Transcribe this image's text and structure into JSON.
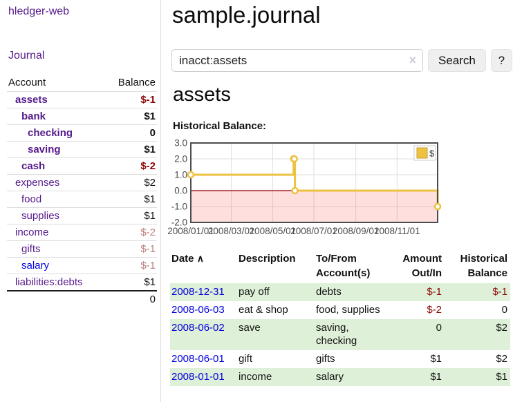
{
  "app": {
    "brand": "hledger-web"
  },
  "sidebar": {
    "journal_label": "Journal",
    "accounts_table": {
      "headers": {
        "account": "Account",
        "balance": "Balance"
      },
      "rows": [
        {
          "name": "assets",
          "depth": 1,
          "nameClass": "purple bold",
          "balance": "$-1",
          "balClass": "bold neg"
        },
        {
          "name": "bank",
          "depth": 2,
          "nameClass": "purple bold",
          "balance": "$1",
          "balClass": "bold"
        },
        {
          "name": "checking",
          "depth": 3,
          "nameClass": "purple bold",
          "balance": "0",
          "balClass": "bold"
        },
        {
          "name": "saving",
          "depth": 3,
          "nameClass": "purple bold",
          "balance": "$1",
          "balClass": "bold"
        },
        {
          "name": "cash",
          "depth": 2,
          "nameClass": "purple bold",
          "balance": "$-2",
          "balClass": "bold neg"
        },
        {
          "name": "expenses",
          "depth": 1,
          "nameClass": "purple",
          "balance": "$2",
          "balClass": ""
        },
        {
          "name": "food",
          "depth": 2,
          "nameClass": "purple",
          "balance": "$1",
          "balClass": ""
        },
        {
          "name": "supplies",
          "depth": 2,
          "nameClass": "purple",
          "balance": "$1",
          "balClass": ""
        },
        {
          "name": "income",
          "depth": 1,
          "nameClass": "purple",
          "balance": "$-2",
          "balClass": "mneg"
        },
        {
          "name": "gifts",
          "depth": 2,
          "nameClass": "purple",
          "balance": "$-1",
          "balClass": "mneg"
        },
        {
          "name": "salary",
          "depth": 2,
          "nameClass": "blue",
          "balance": "$-1",
          "balClass": "mneg"
        },
        {
          "name": "liabilities:debts",
          "depth": 1,
          "nameClass": "purple",
          "balance": "$1",
          "balClass": ""
        }
      ],
      "total": "0"
    }
  },
  "header": {
    "title": "sample.journal"
  },
  "search": {
    "value": "inacct:assets",
    "clear_icon": "×",
    "button_label": "Search",
    "help_label": "?"
  },
  "account_page": {
    "heading": "assets",
    "chart_label": "Historical Balance:"
  },
  "chart_data": {
    "type": "line",
    "step": true,
    "series": [
      {
        "name": "$",
        "color": "#edc240",
        "points": [
          [
            "2008-01-01",
            1
          ],
          [
            "2008-06-01",
            2
          ],
          [
            "2008-06-02",
            2
          ],
          [
            "2008-06-03",
            0
          ],
          [
            "2008-12-31",
            -1
          ]
        ]
      }
    ],
    "x_range": [
      "2008-01-01",
      "2008-12-31"
    ],
    "x_ticks": [
      {
        "date": "2008-01-01",
        "label": "2008/01/01"
      },
      {
        "date": "2008-03-01",
        "label": "2008/03/01"
      },
      {
        "date": "2008-05-01",
        "label": "2008/05/01"
      },
      {
        "date": "2008-07-01",
        "label": "2008/07/01"
      },
      {
        "date": "2008-09-01",
        "label": "2008/09/01"
      },
      {
        "date": "2008-11-01",
        "label": "2008/11/01"
      }
    ],
    "y_ticks": [
      "3.0",
      "2.0",
      "1.0",
      "0.0",
      "-1.0",
      "-2.0"
    ],
    "ylim": [
      -2,
      3
    ],
    "legend": {
      "label": "$",
      "position": "top-right"
    },
    "grid": true,
    "negative_region_fill": "rgba(255,0,0,0.13)",
    "zero_line_color": "#8b0000",
    "marker_fill": "#ffffff"
  },
  "register_table": {
    "headers": {
      "date": "Date",
      "sort_icon": "∧",
      "description": "Description",
      "accounts": "To/From\nAccount(s)",
      "amount": "Amount\nOut/In",
      "balance": "Historical\nBalance"
    },
    "rows": [
      {
        "date": "2008-12-31",
        "description": "pay off",
        "accounts": "debts",
        "amount": "$-1",
        "amount_neg": true,
        "balance": "$-1",
        "balance_neg": true
      },
      {
        "date": "2008-06-03",
        "description": "eat & shop",
        "accounts": "food, supplies",
        "amount": "$-2",
        "amount_neg": true,
        "balance": "0",
        "balance_neg": false
      },
      {
        "date": "2008-06-02",
        "description": "save",
        "accounts": "saving,\nchecking",
        "amount": "0",
        "amount_neg": false,
        "balance": "$2",
        "balance_neg": false
      },
      {
        "date": "2008-06-01",
        "description": "gift",
        "accounts": "gifts",
        "amount": "$1",
        "amount_neg": false,
        "balance": "$2",
        "balance_neg": false
      },
      {
        "date": "2008-01-01",
        "description": "income",
        "accounts": "salary",
        "amount": "$1",
        "amount_neg": false,
        "balance": "$1",
        "balance_neg": false
      }
    ]
  },
  "colors": {
    "link_visited_purple": "#551a8b",
    "link_blue": "#0000dd",
    "negative_strong": "#8b0505",
    "negative_muted": "#bd7d7d",
    "row_green": "#dff0d8",
    "chart_gold": "#edc240"
  }
}
